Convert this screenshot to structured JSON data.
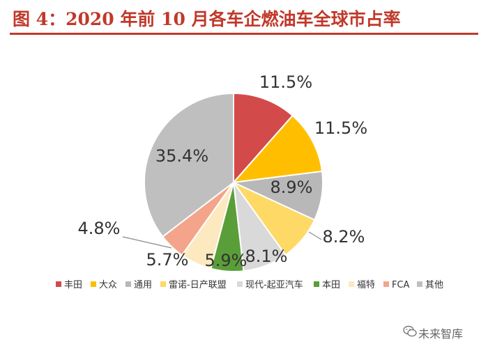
{
  "title": "图 4：2020 年前 10 月各车企燃油车全球市占率",
  "watermark": "未来智库",
  "colors": {
    "title": "#c0392b",
    "text": "#333333",
    "leader": "#8a8a8a"
  },
  "chart_data": {
    "type": "pie",
    "title": "图 4：2020 年前 10 月各车企燃油车全球市占率",
    "legend_position": "bottom",
    "slices": [
      {
        "name": "丰田",
        "value": 11.5,
        "label": "11.5%",
        "color": "#d34a4a"
      },
      {
        "name": "大众",
        "value": 11.5,
        "label": "11.5%",
        "color": "#ffbf00"
      },
      {
        "name": "通用",
        "value": 8.9,
        "label": "8.9%",
        "color": "#b8b8b8"
      },
      {
        "name": "雷诺-日产联盟",
        "value": 8.2,
        "label": "8.2%",
        "color": "#ffd966"
      },
      {
        "name": "现代-起亚汽车",
        "value": 8.1,
        "label": "8.1%",
        "color": "#d9d9d9"
      },
      {
        "name": "本田",
        "value": 5.9,
        "label": "5.9%",
        "color": "#5a9e3a"
      },
      {
        "name": "福特",
        "value": 5.7,
        "label": "5.7%",
        "color": "#fde9c0"
      },
      {
        "name": "FCA",
        "value": 4.8,
        "label": "4.8%",
        "color": "#f4a48a"
      },
      {
        "name": "其他",
        "value": 35.4,
        "label": "35.4%",
        "color": "#bfbfbf"
      }
    ]
  }
}
